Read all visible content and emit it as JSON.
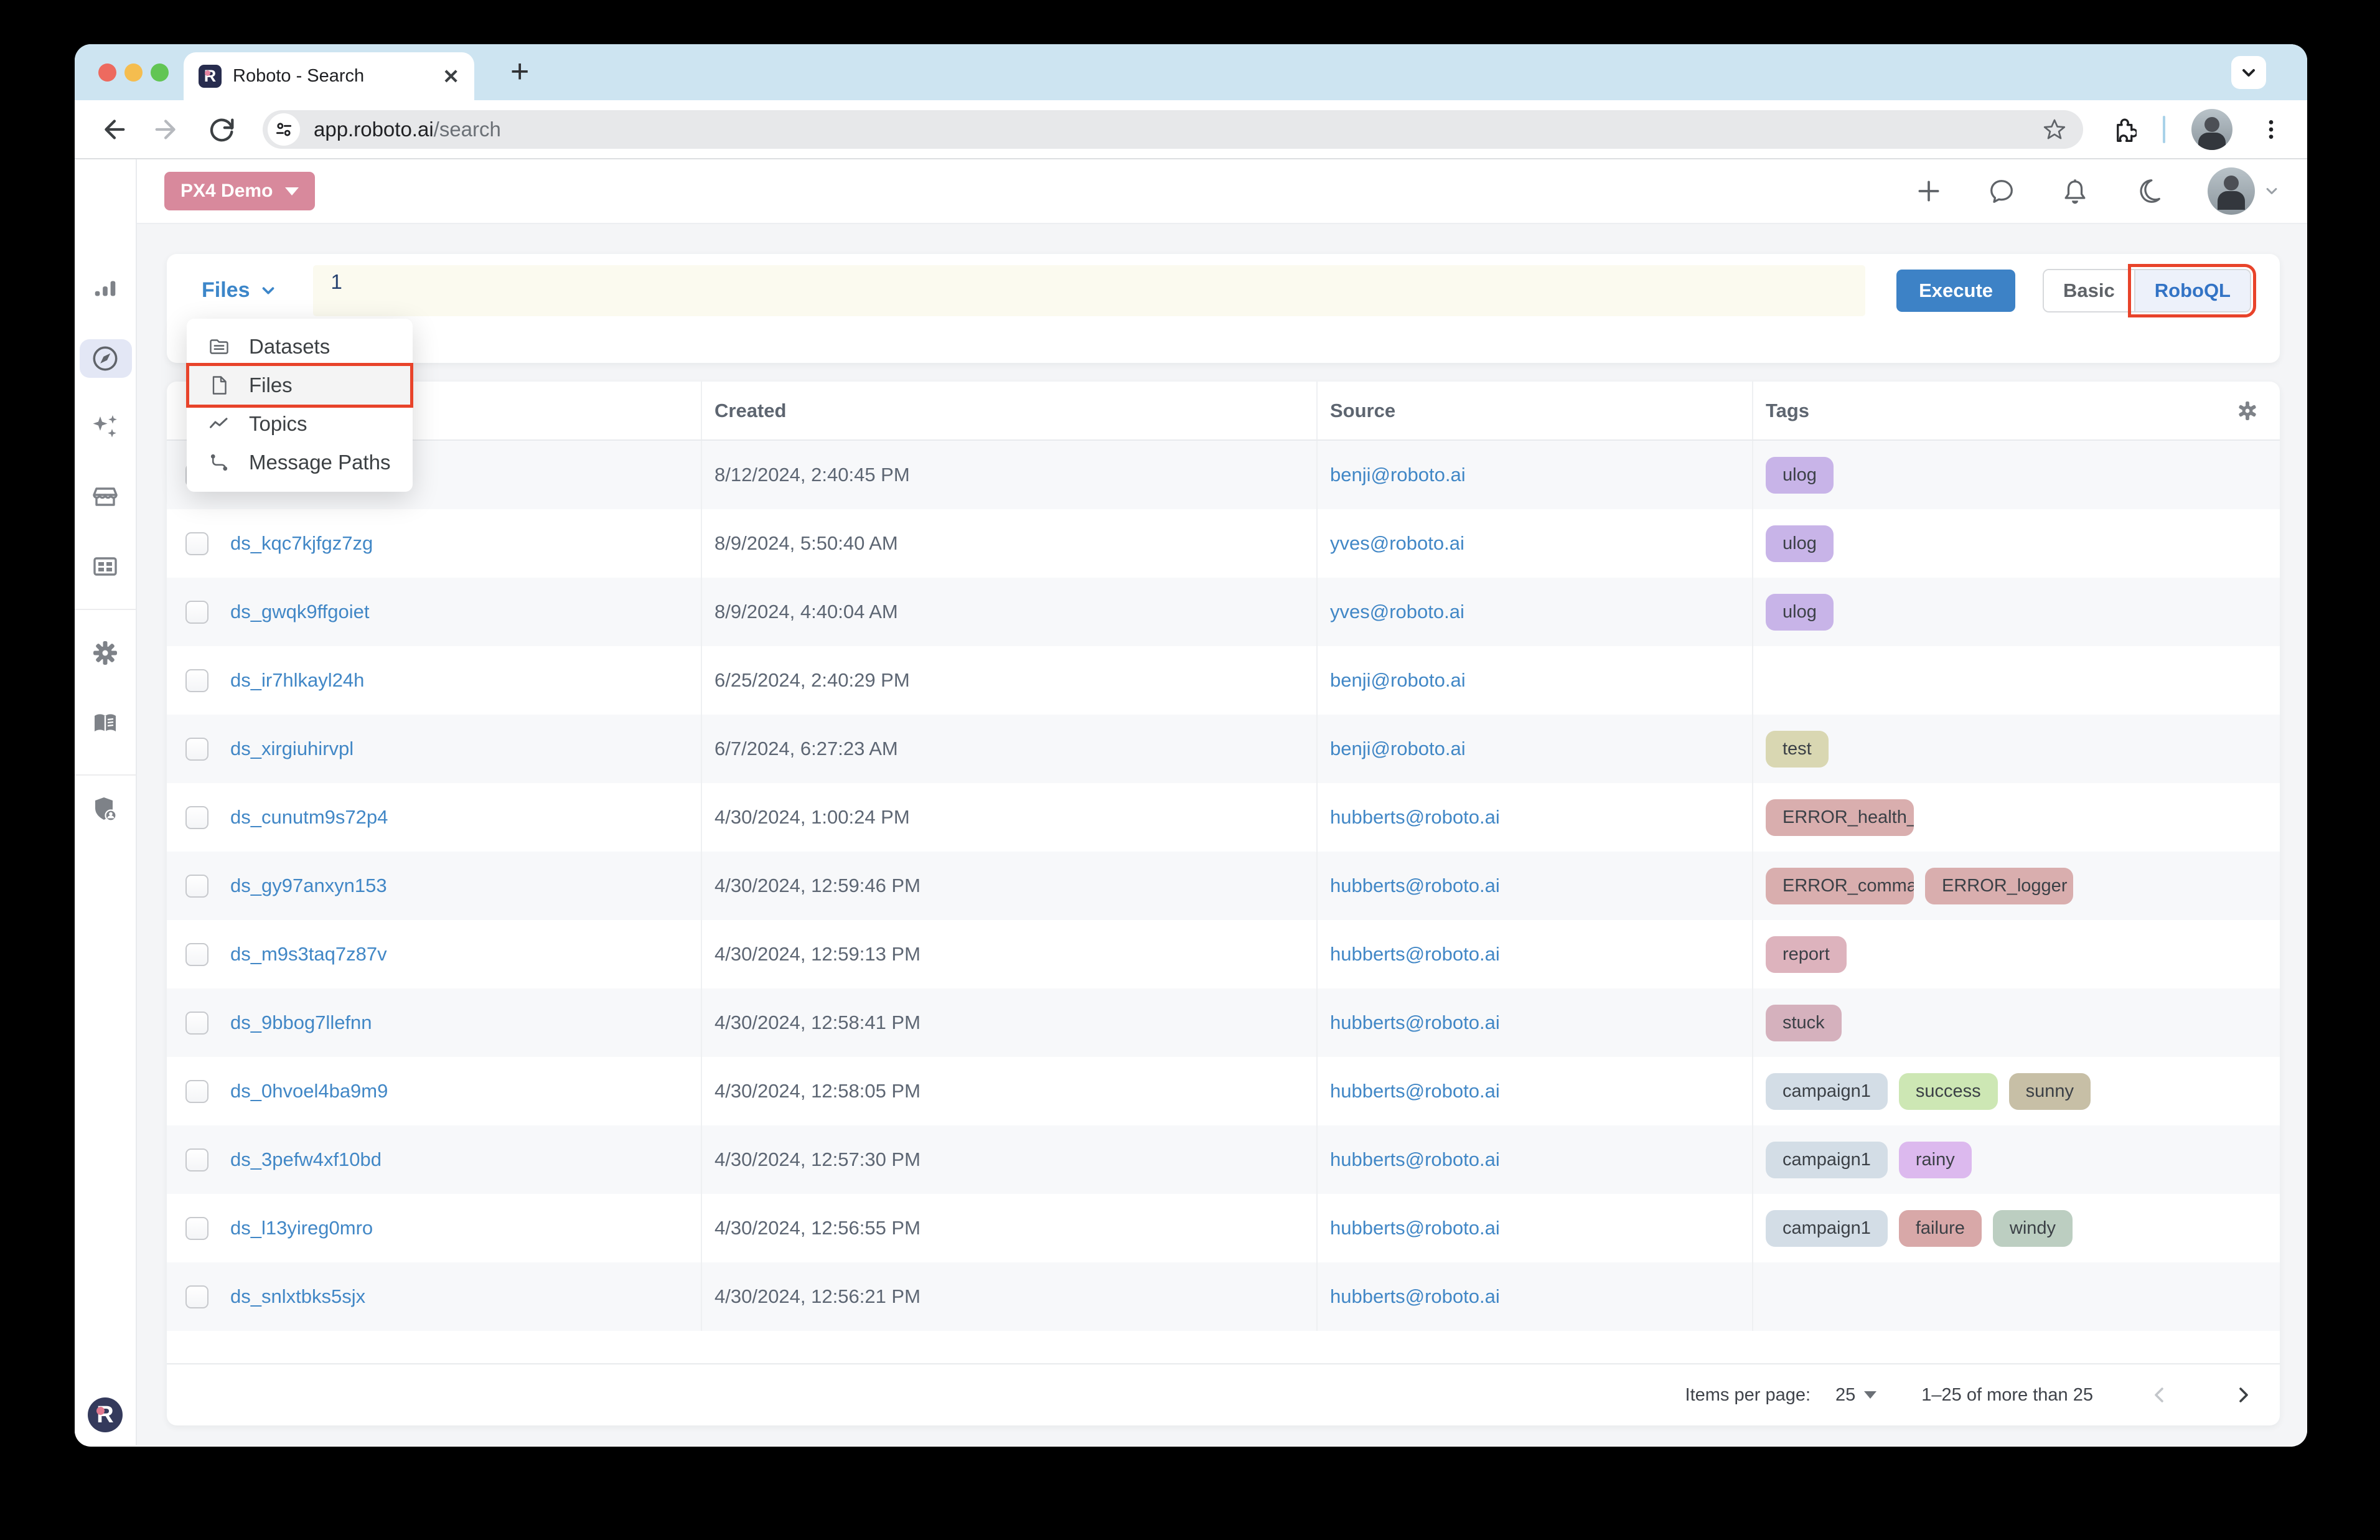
{
  "browser": {
    "tab_title": "Roboto - Search",
    "url_host": "app.roboto.ai",
    "url_path": "/search",
    "favicon_letter": "R",
    "toolbar_icons": [
      "back-icon",
      "forward-icon",
      "reload-icon",
      "tune-icon",
      "star-icon",
      "extensions-icon",
      "profile-avatar",
      "kebab-menu-icon"
    ]
  },
  "workspace": {
    "org_button_label": "PX4 Demo"
  },
  "app_header_icons": [
    "plus-icon",
    "chat-bubble-icon",
    "bell-icon",
    "moon-icon",
    "avatar",
    "chevron-down-icon"
  ],
  "sidebar_icons": [
    "bar-chart-icon",
    "compass-icon",
    "sparkles-icon",
    "storefront-icon",
    "grid-card-icon",
    "gear-icon",
    "book-icon",
    "shield-user-icon",
    "roboto-logo"
  ],
  "query": {
    "entity_selector": "Files",
    "editor_line_number": "1",
    "execute_label": "Execute",
    "mode_basic_label": "Basic",
    "mode_roboql_label": "RoboQL"
  },
  "menu": {
    "items": [
      {
        "label": "Datasets",
        "icon": "folder",
        "selected": false
      },
      {
        "label": "Files",
        "icon": "file",
        "selected": true,
        "annotated": true
      },
      {
        "label": "Topics",
        "icon": "trend",
        "selected": false
      },
      {
        "label": "Message Paths",
        "icon": "route",
        "selected": false
      }
    ]
  },
  "table": {
    "headers": {
      "created": "Created",
      "source": "Source",
      "tags": "Tags"
    },
    "rows": [
      {
        "name": "",
        "created": "8/12/2024, 2:40:45 PM",
        "source": "benji@roboto.ai",
        "tags": [
          {
            "label": "ulog",
            "color": "#c8b4e8"
          }
        ]
      },
      {
        "name": "ds_kqc7kjfgz7zg",
        "created": "8/9/2024, 5:50:40 AM",
        "source": "yves@roboto.ai",
        "tags": [
          {
            "label": "ulog",
            "color": "#c8b4e8"
          }
        ]
      },
      {
        "name": "ds_gwqk9ffgoiet",
        "created": "8/9/2024, 4:40:04 AM",
        "source": "yves@roboto.ai",
        "tags": [
          {
            "label": "ulog",
            "color": "#c8b4e8"
          }
        ]
      },
      {
        "name": "ds_ir7hlkayl24h",
        "created": "6/25/2024, 2:40:29 PM",
        "source": "benji@roboto.ai",
        "tags": []
      },
      {
        "name": "ds_xirgiuhirvpl",
        "created": "6/7/2024, 6:27:23 AM",
        "source": "benji@roboto.ai",
        "tags": [
          {
            "label": "test",
            "color": "#d9d7b2"
          }
        ]
      },
      {
        "name": "ds_cunutm9s72p4",
        "created": "4/30/2024, 1:00:24 PM",
        "source": "hubberts@roboto.ai",
        "tags": [
          {
            "label": "ERROR_health_…",
            "color": "#d9aeae"
          }
        ]
      },
      {
        "name": "ds_gy97anxyn153",
        "created": "4/30/2024, 12:59:46 PM",
        "source": "hubberts@roboto.ai",
        "tags": [
          {
            "label": "ERROR_comma…",
            "color": "#d9aeae"
          },
          {
            "label": "ERROR_logger",
            "color": "#d9aeae"
          }
        ]
      },
      {
        "name": "ds_m9s3taq7z87v",
        "created": "4/30/2024, 12:59:13 PM",
        "source": "hubberts@roboto.ai",
        "tags": [
          {
            "label": "report",
            "color": "#ddb3bd"
          }
        ]
      },
      {
        "name": "ds_9bbog7llefnn",
        "created": "4/30/2024, 12:58:41 PM",
        "source": "hubberts@roboto.ai",
        "tags": [
          {
            "label": "stuck",
            "color": "#d5b1bd"
          }
        ]
      },
      {
        "name": "ds_0hvoel4ba9m9",
        "created": "4/30/2024, 12:58:05 PM",
        "source": "hubberts@roboto.ai",
        "tags": [
          {
            "label": "campaign1",
            "color": "#d3dde6"
          },
          {
            "label": "success",
            "color": "#cde7b4"
          },
          {
            "label": "sunny",
            "color": "#c7bfa6"
          }
        ]
      },
      {
        "name": "ds_3pefw4xf10bd",
        "created": "4/30/2024, 12:57:30 PM",
        "source": "hubberts@roboto.ai",
        "tags": [
          {
            "label": "campaign1",
            "color": "#d3dde6"
          },
          {
            "label": "rainy",
            "color": "#dcb9ee"
          }
        ]
      },
      {
        "name": "ds_l13yireg0mro",
        "created": "4/30/2024, 12:56:55 PM",
        "source": "hubberts@roboto.ai",
        "tags": [
          {
            "label": "campaign1",
            "color": "#d3dde6"
          },
          {
            "label": "failure",
            "color": "#d8a8a8"
          },
          {
            "label": "windy",
            "color": "#bccec1"
          }
        ]
      },
      {
        "name": "ds_snlxtbks5sjx",
        "created": "4/30/2024, 12:56:21 PM",
        "source": "hubberts@roboto.ai",
        "tags": []
      }
    ]
  },
  "pagination": {
    "items_per_page_label": "Items per page:",
    "items_per_page_value": "25",
    "range_text": "1–25 of more than 25"
  },
  "colors": {
    "annotation_red": "#e8432a",
    "execute_blue": "#3d82c6",
    "link_blue": "#4187c6",
    "org_pink": "#d8899c",
    "titlebar_blue": "#cde4f1"
  }
}
